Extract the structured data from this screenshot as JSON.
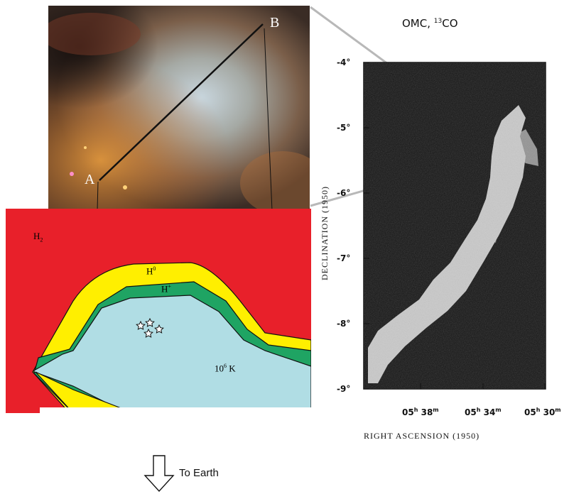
{
  "photo": {
    "point_a": "A",
    "point_b": "B"
  },
  "cross_section": {
    "region_h2": "H",
    "region_h2_sub": "2",
    "region_h0": "H",
    "region_h0_sup": "0",
    "region_hplus": "H",
    "region_hplus_sup": "+",
    "region_hot": "10",
    "region_hot_sup": "6",
    "region_hot_unit": "K",
    "colors": {
      "molecular": "#e8202a",
      "neutral": "#ffef00",
      "ionized": "#1fa463",
      "hot_gas": "#b0dde4"
    }
  },
  "co_map": {
    "title_prefix": "OMC, ",
    "title_isotope": "13",
    "title_molecule": "CO",
    "y_axis_label": "DECLINATION (1950)",
    "x_axis_label": "RIGHT ASCENSION (1950)",
    "y_ticks": [
      "-4°",
      "-5°",
      "-6°",
      "-7°",
      "-8°",
      "-9°"
    ],
    "x_ticks": [
      {
        "h": "05",
        "hu": "h",
        "m": "38",
        "mu": "m"
      },
      {
        "h": "05",
        "hu": "h",
        "m": "34",
        "mu": "m"
      },
      {
        "h": "05",
        "hu": "h",
        "m": "30",
        "mu": "m"
      }
    ]
  },
  "arrow": {
    "label": "To Earth"
  }
}
